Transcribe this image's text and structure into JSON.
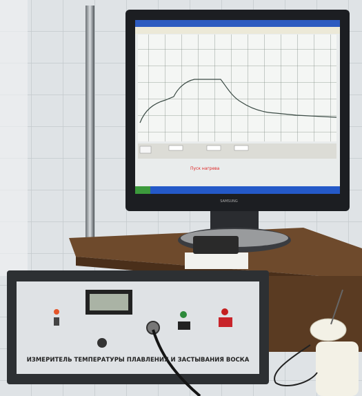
{
  "monitor": {
    "brand": "SAMSUNG",
    "screen_status": "Пуск нагрева"
  },
  "device": {
    "label": "ИЗМЕРИТЕЛЬ ТЕМПЕРАТУРЫ ПЛАВЛЕНИЯ И ЗАСТЫВАНИЯ ВОСКА"
  }
}
